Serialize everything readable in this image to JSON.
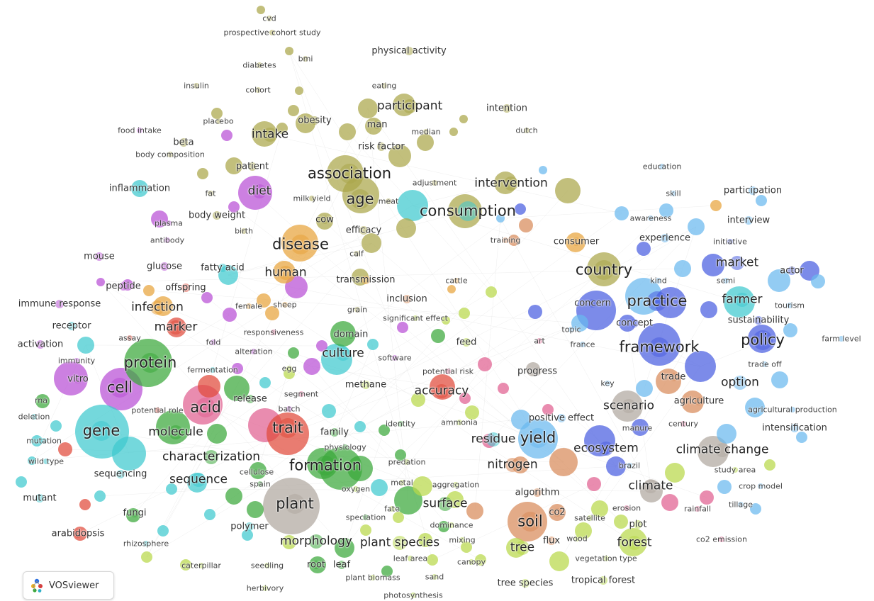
{
  "app": {
    "name": "VOSviewer"
  },
  "colors": {
    "olive": "#aaa64a",
    "purple": "#b84fd6",
    "green": "#3aa83a",
    "red": "#e04a3a",
    "blue": "#4a5ee0",
    "teal": "#3ec9cf",
    "orange": "#e8a33c",
    "lightblue": "#6ab8ee",
    "peach": "#d88a5a",
    "pink": "#e06090",
    "yellowgreen": "#b8d84a",
    "gray": "#b0a8a0"
  },
  "terms": [
    {
      "label": "cvd",
      "tier": 4,
      "color": "olive"
    },
    {
      "label": "prospective cohort study",
      "tier": 4,
      "color": "olive"
    },
    {
      "label": "physical activity",
      "tier": 3,
      "color": "olive"
    },
    {
      "label": "bmi",
      "tier": 4,
      "color": "olive"
    },
    {
      "label": "diabetes",
      "tier": 4,
      "color": "olive"
    },
    {
      "label": "insulin",
      "tier": 4,
      "color": "olive"
    },
    {
      "label": "cohort",
      "tier": 4,
      "color": "olive"
    },
    {
      "label": "eating",
      "tier": 4,
      "color": "olive"
    },
    {
      "label": "participant",
      "tier": 2,
      "color": "olive"
    },
    {
      "label": "intention",
      "tier": 3,
      "color": "olive"
    },
    {
      "label": "placebo",
      "tier": 4,
      "color": "olive"
    },
    {
      "label": "obesity",
      "tier": 3,
      "color": "olive"
    },
    {
      "label": "man",
      "tier": 3,
      "color": "olive"
    },
    {
      "label": "median",
      "tier": 4,
      "color": "olive"
    },
    {
      "label": "dutch",
      "tier": 4,
      "color": "olive"
    },
    {
      "label": "food intake",
      "tier": 4,
      "color": "purple"
    },
    {
      "label": "intake",
      "tier": 2,
      "color": "olive"
    },
    {
      "label": "beta",
      "tier": 3,
      "color": "olive"
    },
    {
      "label": "risk factor",
      "tier": 3,
      "color": "olive"
    },
    {
      "label": "body composition",
      "tier": 4,
      "color": "olive"
    },
    {
      "label": "patient",
      "tier": 3,
      "color": "olive"
    },
    {
      "label": "association",
      "tier": 1,
      "color": "olive"
    },
    {
      "label": "education",
      "tier": 4,
      "color": "lightblue"
    },
    {
      "label": "inflammation",
      "tier": 3,
      "color": "teal"
    },
    {
      "label": "diet",
      "tier": 2,
      "color": "purple"
    },
    {
      "label": "adjustment",
      "tier": 4,
      "color": "olive"
    },
    {
      "label": "intervention",
      "tier": 2,
      "color": "olive"
    },
    {
      "label": "skill",
      "tier": 4,
      "color": "lightblue"
    },
    {
      "label": "participation",
      "tier": 3,
      "color": "lightblue"
    },
    {
      "label": "fat",
      "tier": 4,
      "color": "olive"
    },
    {
      "label": "milk yield",
      "tier": 4,
      "color": "olive"
    },
    {
      "label": "age",
      "tier": 1,
      "color": "olive"
    },
    {
      "label": "meat",
      "tier": 4,
      "color": "olive"
    },
    {
      "label": "consumption",
      "tier": 1,
      "color": "teal"
    },
    {
      "label": "body weight",
      "tier": 3,
      "color": "olive"
    },
    {
      "label": "plasma",
      "tier": 4,
      "color": "purple"
    },
    {
      "label": "cow",
      "tier": 3,
      "color": "olive"
    },
    {
      "label": "awareness",
      "tier": 4,
      "color": "lightblue"
    },
    {
      "label": "interview",
      "tier": 3,
      "color": "lightblue"
    },
    {
      "label": "birth",
      "tier": 4,
      "color": "olive"
    },
    {
      "label": "efficacy",
      "tier": 3,
      "color": "olive"
    },
    {
      "label": "antibody",
      "tier": 4,
      "color": "purple"
    },
    {
      "label": "disease",
      "tier": 1,
      "color": "orange"
    },
    {
      "label": "training",
      "tier": 4,
      "color": "peach"
    },
    {
      "label": "consumer",
      "tier": 3,
      "color": "orange"
    },
    {
      "label": "experience",
      "tier": 3,
      "color": "lightblue"
    },
    {
      "label": "initiative",
      "tier": 4,
      "color": "blue"
    },
    {
      "label": "mouse",
      "tier": 3,
      "color": "purple"
    },
    {
      "label": "calf",
      "tier": 4,
      "color": "olive"
    },
    {
      "label": "glucose",
      "tier": 3,
      "color": "purple"
    },
    {
      "label": "fatty acid",
      "tier": 3,
      "color": "teal"
    },
    {
      "label": "human",
      "tier": 2,
      "color": "orange"
    },
    {
      "label": "market",
      "tier": 2,
      "color": "blue"
    },
    {
      "label": "country",
      "tier": 1,
      "color": "olive"
    },
    {
      "label": "actor",
      "tier": 3,
      "color": "blue"
    },
    {
      "label": "transmission",
      "tier": 3,
      "color": "orange"
    },
    {
      "label": "cattle",
      "tier": 4,
      "color": "orange"
    },
    {
      "label": "semi",
      "tier": 4,
      "color": "lightblue"
    },
    {
      "label": "kind",
      "tier": 4,
      "color": "lightblue"
    },
    {
      "label": "peptide",
      "tier": 3,
      "color": "purple"
    },
    {
      "label": "offspring",
      "tier": 3,
      "color": "red"
    },
    {
      "label": "inclusion",
      "tier": 3,
      "color": "peach"
    },
    {
      "label": "immune response",
      "tier": 3,
      "color": "purple"
    },
    {
      "label": "infection",
      "tier": 2,
      "color": "orange"
    },
    {
      "label": "female",
      "tier": 4,
      "color": "orange"
    },
    {
      "label": "sheep",
      "tier": 4,
      "color": "orange"
    },
    {
      "label": "grain",
      "tier": 4,
      "color": "olive"
    },
    {
      "label": "significant effect",
      "tier": 4,
      "color": "yellowgreen"
    },
    {
      "label": "concern",
      "tier": 3,
      "color": "blue"
    },
    {
      "label": "practice",
      "tier": 1,
      "color": "blue"
    },
    {
      "label": "farmer",
      "tier": 2,
      "color": "teal"
    },
    {
      "label": "tourism",
      "tier": 4,
      "color": "lightblue"
    },
    {
      "label": "receptor",
      "tier": 3,
      "color": "teal"
    },
    {
      "label": "marker",
      "tier": 2,
      "color": "red"
    },
    {
      "label": "concept",
      "tier": 3,
      "color": "blue"
    },
    {
      "label": "sustainability",
      "tier": 3,
      "color": "blue"
    },
    {
      "label": "responsiveness",
      "tier": 4,
      "color": "pink"
    },
    {
      "label": "domain",
      "tier": 3,
      "color": "green"
    },
    {
      "label": "topic",
      "tier": 4,
      "color": "lightblue"
    },
    {
      "label": "policy",
      "tier": 1,
      "color": "blue"
    },
    {
      "label": "activation",
      "tier": 3,
      "color": "purple"
    },
    {
      "label": "assay",
      "tier": 4,
      "color": "red"
    },
    {
      "label": "fold",
      "tier": 4,
      "color": "purple"
    },
    {
      "label": "feed",
      "tier": 3,
      "color": "yellowgreen"
    },
    {
      "label": "art",
      "tier": 4,
      "color": "pink"
    },
    {
      "label": "france",
      "tier": 4,
      "color": "lightblue"
    },
    {
      "label": "farm level",
      "tier": 4,
      "color": "lightblue"
    },
    {
      "label": "alteration",
      "tier": 4,
      "color": "purple"
    },
    {
      "label": "culture",
      "tier": 2,
      "color": "teal"
    },
    {
      "label": "software",
      "tier": 4,
      "color": "purple"
    },
    {
      "label": "framework",
      "tier": 1,
      "color": "blue"
    },
    {
      "label": "immunity",
      "tier": 4,
      "color": "purple"
    },
    {
      "label": "protein",
      "tier": 1,
      "color": "green"
    },
    {
      "label": "fermentation",
      "tier": 4,
      "color": "teal"
    },
    {
      "label": "trade off",
      "tier": 4,
      "color": "lightblue"
    },
    {
      "label": "egg",
      "tier": 4,
      "color": "yellowgreen"
    },
    {
      "label": "potential risk",
      "tier": 4,
      "color": "pink"
    },
    {
      "label": "progress",
      "tier": 3,
      "color": "gray"
    },
    {
      "label": "trade",
      "tier": 3,
      "color": "peach"
    },
    {
      "label": "vitro",
      "tier": 3,
      "color": "purple"
    },
    {
      "label": "methane",
      "tier": 3,
      "color": "yellowgreen"
    },
    {
      "label": "cell",
      "tier": 1,
      "color": "purple"
    },
    {
      "label": "key",
      "tier": 4,
      "color": "lightblue"
    },
    {
      "label": "option",
      "tier": 2,
      "color": "lightblue"
    },
    {
      "label": "accuracy",
      "tier": 2,
      "color": "red"
    },
    {
      "label": "release",
      "tier": 3,
      "color": "green"
    },
    {
      "label": "segment",
      "tier": 4,
      "color": "pink"
    },
    {
      "label": "rna",
      "tier": 4,
      "color": "green"
    },
    {
      "label": "agriculture",
      "tier": 3,
      "color": "peach"
    },
    {
      "label": "scenario",
      "tier": 2,
      "color": "gray"
    },
    {
      "label": "acid",
      "tier": 1,
      "color": "pink"
    },
    {
      "label": "batch",
      "tier": 4,
      "color": "purple"
    },
    {
      "label": "potential role",
      "tier": 4,
      "color": "red"
    },
    {
      "label": "deletion",
      "tier": 4,
      "color": "teal"
    },
    {
      "label": "agricultural production",
      "tier": 4,
      "color": "lightblue"
    },
    {
      "label": "positive effect",
      "tier": 3,
      "color": "lightblue"
    },
    {
      "label": "ammonia",
      "tier": 4,
      "color": "yellowgreen"
    },
    {
      "label": "identity",
      "tier": 4,
      "color": "green"
    },
    {
      "label": "century",
      "tier": 4,
      "color": "pink"
    },
    {
      "label": "gene",
      "tier": 1,
      "color": "teal"
    },
    {
      "label": "molecule",
      "tier": 2,
      "color": "green"
    },
    {
      "label": "trait",
      "tier": 1,
      "color": "red"
    },
    {
      "label": "family",
      "tier": 3,
      "color": "green"
    },
    {
      "label": "manure",
      "tier": 4,
      "color": "gray"
    },
    {
      "label": "intensification",
      "tier": 3,
      "color": "lightblue"
    },
    {
      "label": "mutation",
      "tier": 4,
      "color": "teal"
    },
    {
      "label": "residue",
      "tier": 2,
      "color": "teal"
    },
    {
      "label": "yield",
      "tier": 1,
      "color": "lightblue"
    },
    {
      "label": "physiology",
      "tier": 4,
      "color": "green"
    },
    {
      "label": "ecosystem",
      "tier": 2,
      "color": "blue"
    },
    {
      "label": "climate change",
      "tier": 2,
      "color": "gray"
    },
    {
      "label": "characterization",
      "tier": 2,
      "color": "green"
    },
    {
      "label": "wild type",
      "tier": 4,
      "color": "teal"
    },
    {
      "label": "predation",
      "tier": 4,
      "color": "yellowgreen"
    },
    {
      "label": "nitrogen",
      "tier": 2,
      "color": "peach"
    },
    {
      "label": "brazil",
      "tier": 4,
      "color": "lightblue"
    },
    {
      "label": "formation",
      "tier": 1,
      "color": "green"
    },
    {
      "label": "study area",
      "tier": 4,
      "color": "yellowgreen"
    },
    {
      "label": "sequencing",
      "tier": 3,
      "color": "teal"
    },
    {
      "label": "sequence",
      "tier": 2,
      "color": "teal"
    },
    {
      "label": "cellulose",
      "tier": 4,
      "color": "green"
    },
    {
      "label": "metal",
      "tier": 4,
      "color": "yellowgreen"
    },
    {
      "label": "climate",
      "tier": 2,
      "color": "gray"
    },
    {
      "label": "crop model",
      "tier": 4,
      "color": "lightblue"
    },
    {
      "label": "spain",
      "tier": 4,
      "color": "green"
    },
    {
      "label": "oxygen",
      "tier": 4,
      "color": "yellowgreen"
    },
    {
      "label": "aggregation",
      "tier": 4,
      "color": "yellowgreen"
    },
    {
      "label": "algorithm",
      "tier": 3,
      "color": "peach"
    },
    {
      "label": "mutant",
      "tier": 3,
      "color": "teal"
    },
    {
      "label": "plant",
      "tier": 1,
      "color": "gray"
    },
    {
      "label": "surface",
      "tier": 2,
      "color": "green"
    },
    {
      "label": "erosion",
      "tier": 4,
      "color": "pink"
    },
    {
      "label": "rainfall",
      "tier": 4,
      "color": "pink"
    },
    {
      "label": "tillage",
      "tier": 4,
      "color": "lightblue"
    },
    {
      "label": "fungi",
      "tier": 3,
      "color": "green"
    },
    {
      "label": "speciation",
      "tier": 4,
      "color": "green"
    },
    {
      "label": "fate",
      "tier": 4,
      "color": "yellowgreen"
    },
    {
      "label": "co2",
      "tier": 3,
      "color": "peach"
    },
    {
      "label": "satellite",
      "tier": 4,
      "color": "yellowgreen"
    },
    {
      "label": "polymer",
      "tier": 3,
      "color": "teal"
    },
    {
      "label": "dominance",
      "tier": 4,
      "color": "yellowgreen"
    },
    {
      "label": "soil",
      "tier": 1,
      "color": "peach"
    },
    {
      "label": "plot",
      "tier": 3,
      "color": "yellowgreen"
    },
    {
      "label": "arabidopsis",
      "tier": 3,
      "color": "red"
    },
    {
      "label": "morphology",
      "tier": 2,
      "color": "green"
    },
    {
      "label": "plant species",
      "tier": 2,
      "color": "yellowgreen"
    },
    {
      "label": "mixing",
      "tier": 4,
      "color": "yellowgreen"
    },
    {
      "label": "wood",
      "tier": 4,
      "color": "yellowgreen"
    },
    {
      "label": "forest",
      "tier": 2,
      "color": "yellowgreen"
    },
    {
      "label": "co2 emission",
      "tier": 4,
      "color": "pink"
    },
    {
      "label": "rhizosphere",
      "tier": 4,
      "color": "teal"
    },
    {
      "label": "flux",
      "tier": 3,
      "color": "peach"
    },
    {
      "label": "tree",
      "tier": 2,
      "color": "yellowgreen"
    },
    {
      "label": "caterpillar",
      "tier": 4,
      "color": "yellowgreen"
    },
    {
      "label": "seedling",
      "tier": 4,
      "color": "yellowgreen"
    },
    {
      "label": "root",
      "tier": 3,
      "color": "green"
    },
    {
      "label": "leaf",
      "tier": 3,
      "color": "green"
    },
    {
      "label": "leaf area",
      "tier": 4,
      "color": "yellowgreen"
    },
    {
      "label": "canopy",
      "tier": 4,
      "color": "yellowgreen"
    },
    {
      "label": "vegetation type",
      "tier": 4,
      "color": "yellowgreen"
    },
    {
      "label": "plant biomass",
      "tier": 4,
      "color": "yellowgreen"
    },
    {
      "label": "sand",
      "tier": 4,
      "color": "yellowgreen"
    },
    {
      "label": "tree species",
      "tier": 3,
      "color": "yellowgreen"
    },
    {
      "label": "tropical forest",
      "tier": 3,
      "color": "yellowgreen"
    },
    {
      "label": "herbivory",
      "tier": 4,
      "color": "yellowgreen"
    },
    {
      "label": "photosynthesis",
      "tier": 4,
      "color": "yellowgreen"
    }
  ]
}
